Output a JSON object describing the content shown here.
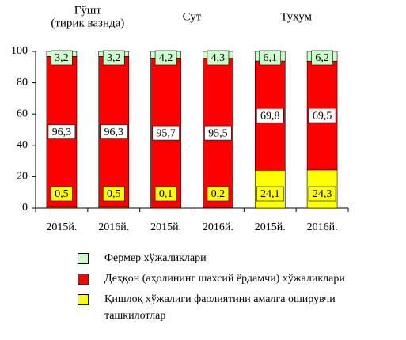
{
  "chart_data": {
    "type": "bar",
    "stacked": true,
    "groups": [
      "Гўшт\n(тирик вазнда)",
      "Сут",
      "Тухум"
    ],
    "categories": [
      "2015й.",
      "2016й.",
      "2015й.",
      "2016й.",
      "2015й.",
      "2016й."
    ],
    "ylim": [
      0,
      100
    ],
    "yticks": [
      0,
      20,
      40,
      60,
      80,
      100
    ],
    "series": [
      {
        "name": "Қишлоқ хўжалиги фаолиятини амалга оширувчи ташкилотлар",
        "color": "#ffff00",
        "values": [
          0.5,
          0.5,
          0.1,
          0.2,
          24.1,
          24.3
        ],
        "labels": [
          "0,5",
          "0,5",
          "0,1",
          "0,2",
          "24,1",
          "24,3"
        ]
      },
      {
        "name": "Деҳқон (аҳолининг шахсий ёрдамчи) хўжаликлари",
        "color": "#ff0000",
        "values": [
          96.3,
          96.3,
          95.7,
          95.5,
          69.8,
          69.5
        ],
        "labels": [
          "96,3",
          "96,3",
          "95,7",
          "95,5",
          "69,8",
          "69,5"
        ]
      },
      {
        "name": "Фермер хўжаликлари",
        "color": "#ccffcc",
        "values": [
          3.2,
          3.2,
          4.2,
          4.3,
          6.1,
          6.2
        ],
        "labels": [
          "3,2",
          "3,2",
          "4,2",
          "4,3",
          "6,1",
          "6,2"
        ]
      }
    ],
    "legend_position": "bottom",
    "grid": false
  },
  "legend": [
    {
      "name": "Фермер хўжаликлари",
      "color": "#ccffcc"
    },
    {
      "name": "Деҳқон (аҳолининг шахсий ёрдамчи) хўжаликлари",
      "color": "#ff0000"
    },
    {
      "name": "Қишлоқ хўжалиги фаолиятини амалга оширувчи ташкилотлар",
      "color": "#ffff00"
    }
  ]
}
